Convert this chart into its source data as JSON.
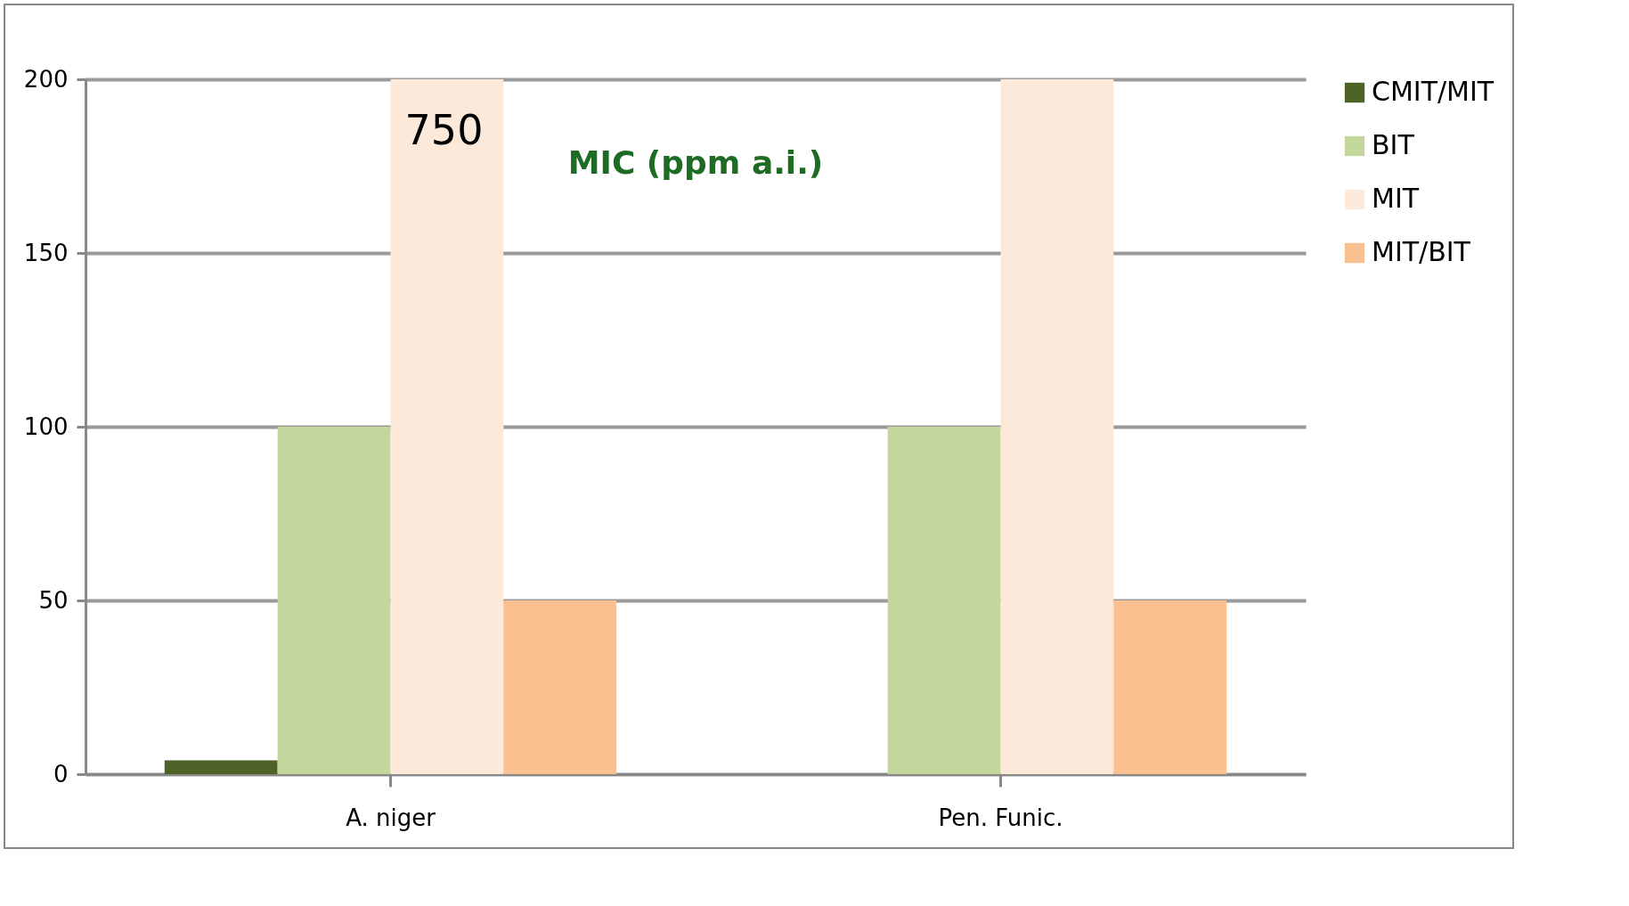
{
  "chart_data": {
    "type": "bar",
    "categories": [
      "A. niger",
      "Pen. Funic."
    ],
    "series": [
      {
        "name": "CMIT/MIT",
        "color": "#4f6228",
        "values": [
          4,
          0
        ]
      },
      {
        "name": "BIT",
        "color": "#c3d69b",
        "values": [
          100,
          100
        ]
      },
      {
        "name": "MIT",
        "color": "#fde9d9",
        "values": [
          200,
          200
        ]
      },
      {
        "name": "MIT/BIT",
        "color": "#fac090",
        "values": [
          50,
          50
        ]
      }
    ],
    "ylim": [
      0,
      200
    ],
    "yticks": [
      0,
      50,
      100,
      150,
      200
    ],
    "grid": "y",
    "legend": "right",
    "annotations": [
      {
        "text": "750",
        "x": "A. niger",
        "y": 185
      },
      "MIC (ppm a.i.)"
    ]
  }
}
